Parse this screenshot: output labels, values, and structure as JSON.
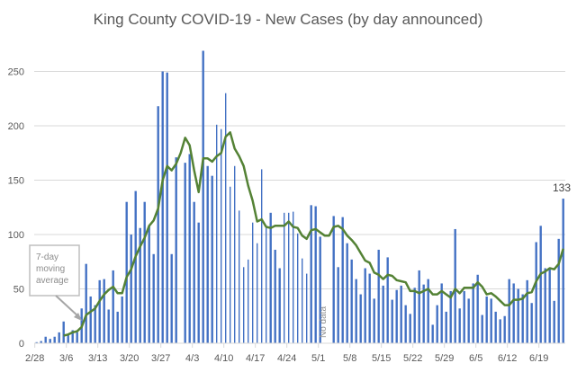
{
  "chart_data": {
    "type": "bar",
    "title": "King County COVID-19 - New Cases (by day announced)",
    "xlabel": "",
    "ylabel": "",
    "ylim": [
      0,
      250
    ],
    "y_ticks": [
      0,
      50,
      100,
      150,
      200,
      250
    ],
    "grid": true,
    "x_tick_labels": [
      "2/28",
      "3/6",
      "3/13",
      "3/20",
      "3/27",
      "4/3",
      "4/10",
      "4/17",
      "4/24",
      "5/1",
      "5/8",
      "5/15",
      "5/22",
      "5/29",
      "6/5",
      "6/12",
      "6/19"
    ],
    "categories": [
      "2/28",
      "2/29",
      "3/1",
      "3/2",
      "3/3",
      "3/4",
      "3/5",
      "3/6",
      "3/7",
      "3/8",
      "3/9",
      "3/10",
      "3/11",
      "3/12",
      "3/13",
      "3/14",
      "3/15",
      "3/16",
      "3/17",
      "3/18",
      "3/19",
      "3/20",
      "3/21",
      "3/22",
      "3/23",
      "3/24",
      "3/25",
      "3/26",
      "3/27",
      "3/28",
      "3/29",
      "3/30",
      "3/31",
      "4/1",
      "4/2",
      "4/3",
      "4/4",
      "4/5",
      "4/6",
      "4/7",
      "4/8",
      "4/9",
      "4/10",
      "4/11",
      "4/12",
      "4/13",
      "4/14",
      "4/15",
      "4/16",
      "4/17",
      "4/18",
      "4/19",
      "4/20",
      "4/21",
      "4/22",
      "4/23",
      "4/24",
      "4/25",
      "4/26",
      "4/27",
      "4/28",
      "4/29",
      "4/30",
      "5/1",
      "5/2",
      "5/3",
      "5/4",
      "5/5",
      "5/6",
      "5/7",
      "5/8",
      "5/9",
      "5/10",
      "5/11",
      "5/12",
      "5/13",
      "5/14",
      "5/15",
      "5/16",
      "5/17",
      "5/18",
      "5/19",
      "5/20",
      "5/21",
      "5/22",
      "5/23",
      "5/24",
      "5/25",
      "5/26",
      "5/27",
      "5/28",
      "5/29",
      "5/30",
      "5/31",
      "6/1",
      "6/2",
      "6/3",
      "6/4",
      "6/5",
      "6/6",
      "6/7",
      "6/8",
      "6/9",
      "6/10",
      "6/11",
      "6/12",
      "6/13",
      "6/14",
      "6/15",
      "6/16",
      "6/17",
      "6/18",
      "6/19",
      "6/20",
      "6/21",
      "6/22",
      "6/23",
      "6/24"
    ],
    "series": [
      {
        "name": "New Cases",
        "type": "bar",
        "color": "#4472c4",
        "values": [
          1,
          2,
          6,
          4,
          6,
          10,
          20,
          8,
          12,
          10,
          32,
          73,
          43,
          35,
          58,
          59,
          31,
          67,
          29,
          43,
          130,
          100,
          140,
          106,
          130,
          108,
          82,
          218,
          250,
          249,
          82,
          171,
          0,
          166,
          174,
          130,
          111,
          269,
          163,
          154,
          201,
          197,
          230,
          144,
          163,
          122,
          70,
          77,
          111,
          92,
          160,
          106,
          120,
          86,
          69,
          120,
          120,
          121,
          101,
          78,
          64,
          127,
          126,
          98,
          null,
          null,
          117,
          70,
          116,
          92,
          77,
          59,
          45,
          69,
          64,
          41,
          86,
          53,
          79,
          40,
          49,
          53,
          35,
          27,
          51,
          67,
          54,
          59,
          17,
          35,
          55,
          29,
          48,
          105,
          32,
          48,
          41,
          55,
          63,
          26,
          43,
          41,
          29,
          22,
          25,
          59,
          55,
          50,
          45,
          58,
          37,
          93,
          108,
          69,
          68,
          39,
          96,
          133
        ]
      },
      {
        "name": "7-day moving average",
        "type": "line",
        "color": "#548235",
        "values": [
          null,
          null,
          null,
          null,
          null,
          null,
          7,
          8,
          10,
          11,
          15,
          26,
          29,
          32,
          39,
          45,
          49,
          52,
          46,
          46,
          61,
          68,
          80,
          89,
          97,
          108,
          113,
          124,
          150,
          163,
          159,
          165,
          175,
          189,
          182,
          159,
          139,
          170,
          170,
          167,
          172,
          175,
          190,
          194,
          179,
          172,
          163,
          145,
          131,
          112,
          114,
          107,
          106,
          108,
          108,
          108,
          112,
          107,
          106,
          99,
          96,
          104,
          105,
          102,
          99,
          99,
          107,
          108,
          105,
          99,
          95,
          90,
          83,
          76,
          74,
          65,
          63,
          59,
          63,
          62,
          58,
          57,
          56,
          48,
          48,
          46,
          48,
          50,
          45,
          45,
          48,
          45,
          42,
          50,
          46,
          51,
          51,
          51,
          56,
          52,
          45,
          46,
          43,
          39,
          35,
          35,
          40,
          40,
          41,
          46,
          47,
          57,
          64,
          66,
          69,
          68,
          73,
          87
        ]
      }
    ],
    "annotations": {
      "moving_average_callout": "7-day moving average",
      "moving_average_callout_lines": [
        "7-day",
        "moving",
        "average"
      ],
      "no_data_label": "No data",
      "last_value_label": "133"
    }
  }
}
